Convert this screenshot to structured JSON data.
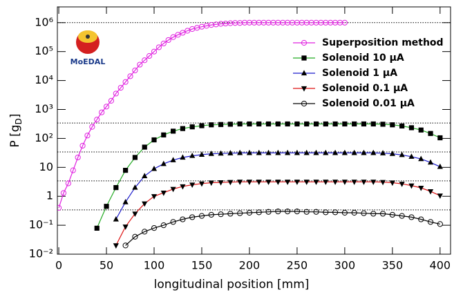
{
  "chart_data": {
    "type": "line",
    "x_label": "longitudinal position [mm]",
    "y_label": "P [g",
    "y_label_sub": "D",
    "y_label_end": "]",
    "logo_text": "MoEDAL",
    "xlim": [
      -1.5,
      411
    ],
    "xticks": [
      0,
      50,
      100,
      150,
      200,
      250,
      300,
      350,
      400
    ],
    "ylim": [
      0.01,
      3500000
    ],
    "log_y": true,
    "yticks": [
      {
        "value": 0.01,
        "label": "10⁻²"
      },
      {
        "value": 0.1,
        "label": "10⁻¹"
      },
      1,
      10,
      {
        "value": 100,
        "label": "10²"
      },
      {
        "value": 1000,
        "label": "10³"
      },
      {
        "value": 10000,
        "label": "10⁴"
      },
      {
        "value": 100000,
        "label": "10⁵"
      },
      {
        "value": 1000000,
        "label": "10⁶"
      }
    ],
    "reference_lines": [
      1000000,
      340,
      34,
      3.4,
      0.34
    ],
    "legend": "upper right",
    "series": [
      {
        "name": "Superposition method",
        "color": "#e020e0",
        "marker_color": "#e020e0",
        "marker": "open-circle",
        "x": [
          0,
          5,
          10,
          15,
          20,
          25,
          30,
          35,
          40,
          45,
          50,
          55,
          60,
          65,
          70,
          75,
          80,
          85,
          90,
          95,
          100,
          105,
          110,
          115,
          120,
          125,
          130,
          135,
          140,
          145,
          150,
          155,
          160,
          165,
          170,
          175,
          180,
          185,
          190,
          195,
          200,
          205,
          210,
          215,
          220,
          225,
          230,
          235,
          240,
          245,
          250,
          255,
          260,
          265,
          270,
          275,
          280,
          285,
          290,
          295,
          300
        ],
        "values": [
          0.4,
          1.3,
          2.8,
          7.9,
          22,
          56,
          126,
          251,
          447,
          794,
          1260,
          2000,
          3550,
          5620,
          8910,
          14100,
          22400,
          35500,
          50100,
          70800,
          100000,
          141000,
          191000,
          251000,
          316000,
          380000,
          447000,
          525000,
          603000,
          661000,
          724000,
          776000,
          832000,
          871000,
          912000,
          933000,
          955000,
          977000,
          977000,
          1000000,
          1000000,
          1000000,
          1000000,
          1000000,
          1000000,
          1000000,
          1000000,
          1000000,
          1000000,
          1000000,
          1000000,
          1000000,
          1000000,
          1000000,
          1000000,
          1000000,
          1000000,
          1000000,
          1000000,
          1000000,
          1000000
        ]
      },
      {
        "name": "Solenoid 10 μA",
        "color": "#22aa22",
        "marker_color": "#000000",
        "marker": "square",
        "x": [
          40,
          50,
          60,
          70,
          80,
          90,
          100,
          110,
          120,
          130,
          140,
          150,
          160,
          170,
          180,
          190,
          200,
          210,
          220,
          230,
          240,
          250,
          260,
          270,
          280,
          290,
          300,
          310,
          320,
          330,
          340,
          350,
          360,
          370,
          380,
          390,
          400
        ],
        "values": [
          0.079,
          0.45,
          2.0,
          7.9,
          22,
          50,
          89,
          132,
          178,
          219,
          251,
          275,
          295,
          302,
          309,
          316,
          316,
          316,
          316,
          316,
          316,
          316,
          316,
          316,
          316,
          316,
          316,
          316,
          316,
          316,
          309,
          295,
          269,
          234,
          195,
          148,
          105
        ]
      },
      {
        "name": "Solenoid 1 μA",
        "color": "#1a1acc",
        "marker_color": "#000000",
        "marker": "triangle-up",
        "x": [
          60,
          70,
          80,
          90,
          100,
          110,
          120,
          130,
          140,
          150,
          160,
          170,
          180,
          190,
          200,
          210,
          220,
          230,
          240,
          250,
          260,
          270,
          280,
          290,
          300,
          310,
          320,
          330,
          340,
          350,
          360,
          370,
          380,
          390,
          400
        ],
        "values": [
          0.16,
          0.63,
          2.0,
          5.0,
          8.9,
          13.2,
          17.8,
          21.9,
          25.1,
          27.5,
          29.5,
          30.2,
          30.9,
          31.6,
          31.6,
          31.6,
          31.6,
          31.6,
          31.6,
          31.6,
          31.6,
          31.6,
          31.6,
          31.6,
          31.6,
          31.6,
          31.6,
          31.6,
          30.9,
          29.5,
          26.9,
          23.4,
          19.5,
          14.8,
          10.5
        ]
      },
      {
        "name": "Solenoid 0.1 μA",
        "color": "#dd1111",
        "marker_color": "#000000",
        "marker": "triangle-down",
        "x": [
          60,
          70,
          80,
          90,
          100,
          110,
          120,
          130,
          140,
          150,
          160,
          170,
          180,
          190,
          200,
          210,
          220,
          230,
          240,
          250,
          260,
          270,
          280,
          290,
          300,
          310,
          320,
          330,
          340,
          350,
          360,
          370,
          380,
          390,
          400
        ],
        "values": [
          0.02,
          0.089,
          0.25,
          0.56,
          1.0,
          1.32,
          1.78,
          2.19,
          2.51,
          2.75,
          2.95,
          3.02,
          3.09,
          3.16,
          3.16,
          3.16,
          3.16,
          3.16,
          3.16,
          3.16,
          3.16,
          3.16,
          3.16,
          3.16,
          3.16,
          3.16,
          3.16,
          3.16,
          3.09,
          2.95,
          2.69,
          2.34,
          1.95,
          1.48,
          1.05
        ]
      },
      {
        "name": "Solenoid 0.01 μA",
        "color": "#000000",
        "marker_color": "#000000",
        "marker": "open-circle",
        "x": [
          70,
          80,
          90,
          100,
          110,
          120,
          130,
          140,
          150,
          160,
          170,
          180,
          190,
          200,
          210,
          220,
          230,
          240,
          250,
          260,
          270,
          280,
          290,
          300,
          310,
          320,
          330,
          340,
          350,
          360,
          370,
          380,
          390,
          400
        ],
        "values": [
          0.02,
          0.04,
          0.06,
          0.08,
          0.1,
          0.13,
          0.16,
          0.19,
          0.21,
          0.23,
          0.24,
          0.25,
          0.26,
          0.27,
          0.28,
          0.29,
          0.3,
          0.3,
          0.3,
          0.29,
          0.29,
          0.28,
          0.28,
          0.27,
          0.27,
          0.26,
          0.25,
          0.25,
          0.23,
          0.21,
          0.19,
          0.16,
          0.13,
          0.11
        ]
      }
    ]
  }
}
